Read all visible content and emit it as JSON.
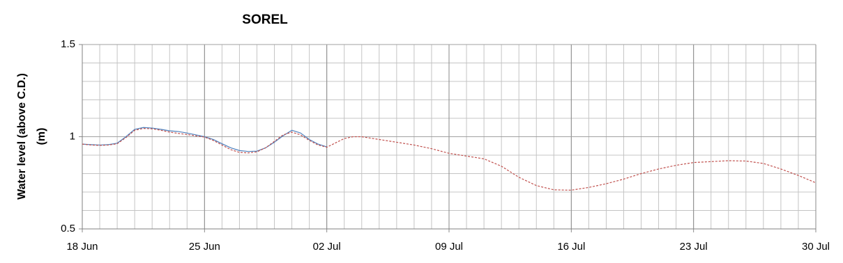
{
  "chart_data": {
    "type": "line",
    "title": "SOREL",
    "ylabel": [
      "Water level (above C.D.)",
      "(m)"
    ],
    "xlim": [
      0,
      42
    ],
    "xticks": [
      {
        "value": 0,
        "label": "18 Jun"
      },
      {
        "value": 7,
        "label": "25 Jun"
      },
      {
        "value": 14,
        "label": "02 Jul"
      },
      {
        "value": 21,
        "label": "09 Jul"
      },
      {
        "value": 28,
        "label": "16 Jul"
      },
      {
        "value": 35,
        "label": "23 Jul"
      },
      {
        "value": 42,
        "label": "30 Jul"
      }
    ],
    "ylim": [
      0.5,
      1.5
    ],
    "yticks": [
      0.5,
      1,
      1.5
    ],
    "grid": true,
    "minor_grid": {
      "x_step": 1,
      "y_step": 0.1
    },
    "series": [
      {
        "color": "#4f81bd",
        "dash": false,
        "x": [
          0,
          0.5,
          1,
          1.5,
          2,
          2.5,
          3,
          3.5,
          4,
          4.5,
          5,
          5.5,
          6,
          6.5,
          7,
          7.5,
          8,
          8.5,
          9,
          9.5,
          10,
          10.5,
          11,
          11.5,
          12,
          12.5,
          13,
          13.5,
          14
        ],
        "values": [
          0.96,
          0.957,
          0.955,
          0.957,
          0.965,
          1.0,
          1.04,
          1.05,
          1.047,
          1.04,
          1.032,
          1.028,
          1.02,
          1.01,
          1.0,
          0.985,
          0.962,
          0.94,
          0.925,
          0.92,
          0.922,
          0.94,
          0.97,
          1.005,
          1.035,
          1.02,
          0.985,
          0.96,
          0.945
        ]
      },
      {
        "color": "#c0504d",
        "dash": true,
        "x": [
          0,
          0.5,
          1,
          1.5,
          2,
          2.5,
          3,
          3.5,
          4,
          4.5,
          5,
          5.5,
          6,
          6.5,
          7,
          7.5,
          8,
          8.5,
          9,
          9.5,
          10,
          10.5,
          11,
          11.5,
          12,
          12.5,
          13,
          13.5,
          14,
          15,
          15.5,
          16,
          17,
          18,
          19,
          20,
          21,
          22,
          23,
          24,
          25,
          26,
          27,
          28,
          29,
          30,
          31,
          32,
          33,
          34,
          35,
          36,
          37,
          38,
          39,
          40,
          41,
          42
        ],
        "values": [
          0.96,
          0.955,
          0.953,
          0.955,
          0.962,
          0.995,
          1.035,
          1.045,
          1.043,
          1.035,
          1.025,
          1.018,
          1.012,
          1.005,
          0.998,
          0.98,
          0.955,
          0.93,
          0.915,
          0.912,
          0.918,
          0.94,
          0.975,
          1.01,
          1.025,
          1.01,
          0.98,
          0.955,
          0.943,
          0.99,
          1.0,
          1.0,
          0.985,
          0.97,
          0.955,
          0.935,
          0.91,
          0.895,
          0.88,
          0.84,
          0.78,
          0.735,
          0.712,
          0.71,
          0.725,
          0.745,
          0.77,
          0.8,
          0.825,
          0.845,
          0.86,
          0.865,
          0.87,
          0.868,
          0.855,
          0.825,
          0.79,
          0.75
        ]
      }
    ]
  }
}
